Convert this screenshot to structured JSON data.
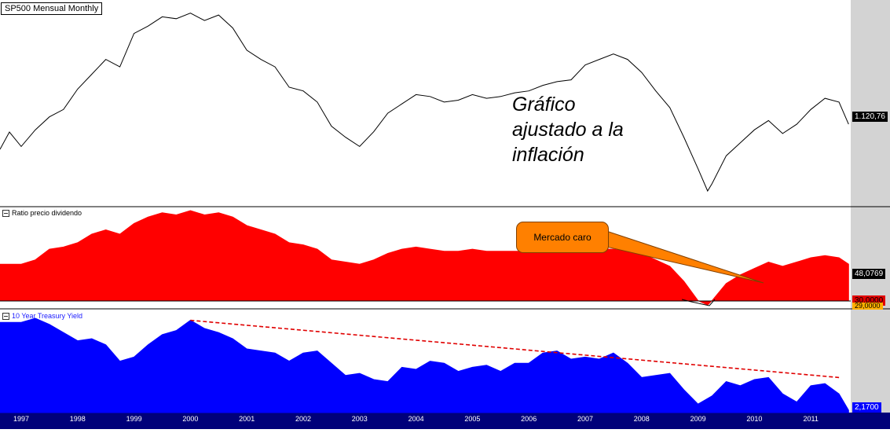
{
  "chart_data": {
    "type": "line",
    "title": "SP500 Mensual Monthly",
    "x_tick_labels": [
      "1997",
      "1998",
      "1999",
      "2000",
      "2001",
      "2002",
      "2003",
      "2004",
      "2005",
      "2006",
      "2007",
      "2008",
      "2009",
      "2010",
      "2011"
    ],
    "panels": [
      {
        "name": "SP500 Mensual Monthly",
        "type": "line",
        "color": "#000000",
        "last_value_label": "1.120,76",
        "annotation": "Gráfico\najustado a la\ninflación",
        "x": [
          1997.0,
          1997.25,
          1997.5,
          1997.75,
          1998.0,
          1998.25,
          1998.5,
          1998.75,
          1999.0,
          1999.25,
          1999.5,
          1999.75,
          2000.0,
          2000.25,
          2000.5,
          2000.75,
          2001.0,
          2001.25,
          2001.5,
          2001.75,
          2002.0,
          2002.25,
          2002.5,
          2002.75,
          2003.0,
          2003.25,
          2003.5,
          2003.75,
          2004.0,
          2004.25,
          2004.5,
          2004.75,
          2005.0,
          2005.25,
          2005.5,
          2005.75,
          2006.0,
          2006.25,
          2006.5,
          2006.75,
          2007.0,
          2007.25,
          2007.5,
          2007.75,
          2008.0,
          2008.25,
          2008.5,
          2008.75,
          2009.0,
          2009.17,
          2009.25,
          2009.5,
          2009.75,
          2010.0,
          2010.25,
          2010.5,
          2010.75,
          2011.0,
          2011.25,
          2011.5,
          2011.67
        ],
        "y": [
          1000,
          1090,
          1160,
          1200,
          1310,
          1390,
          1470,
          1430,
          1610,
          1650,
          1700,
          1690,
          1720,
          1680,
          1710,
          1640,
          1520,
          1470,
          1430,
          1320,
          1300,
          1240,
          1110,
          1050,
          1000,
          1080,
          1180,
          1230,
          1280,
          1270,
          1240,
          1250,
          1280,
          1260,
          1270,
          1290,
          1300,
          1330,
          1350,
          1360,
          1440,
          1470,
          1500,
          1470,
          1400,
          1300,
          1210,
          1050,
          880,
          760,
          800,
          950,
          1020,
          1090,
          1140,
          1070,
          1120,
          1200,
          1260,
          1240,
          1120
        ]
      },
      {
        "name": "Ratio precio dividendo",
        "type": "area",
        "color": "#ff0000",
        "last_value_label": "48,0769",
        "ref_line_label": "30,0000",
        "min_label": "29,0000",
        "callout": "Mercado caro",
        "x": [
          1997.0,
          1997.25,
          1997.5,
          1997.75,
          1998.0,
          1998.25,
          1998.5,
          1998.75,
          1999.0,
          1999.25,
          1999.5,
          1999.75,
          2000.0,
          2000.25,
          2000.5,
          2000.75,
          2001.0,
          2001.25,
          2001.5,
          2001.75,
          2002.0,
          2002.25,
          2002.5,
          2002.75,
          2003.0,
          2003.25,
          2003.5,
          2003.75,
          2004.0,
          2004.25,
          2004.5,
          2004.75,
          2005.0,
          2005.25,
          2005.5,
          2005.75,
          2006.0,
          2006.25,
          2006.5,
          2006.75,
          2007.0,
          2007.25,
          2007.5,
          2007.75,
          2008.0,
          2008.25,
          2008.5,
          2008.75,
          2009.0,
          2009.17,
          2009.25,
          2009.5,
          2009.75,
          2010.0,
          2010.25,
          2010.5,
          2010.75,
          2011.0,
          2011.25,
          2011.5,
          2011.67
        ],
        "y": [
          48,
          50,
          55,
          56,
          58,
          62,
          64,
          62,
          67,
          70,
          72,
          71,
          73,
          71,
          72,
          70,
          66,
          64,
          62,
          58,
          57,
          55,
          50,
          49,
          48,
          50,
          53,
          55,
          56,
          55,
          54,
          54,
          55,
          54,
          54,
          54,
          54,
          55,
          55,
          54,
          55,
          55,
          55,
          54,
          53,
          50,
          47,
          40,
          31,
          29,
          31,
          39,
          43,
          46,
          49,
          47,
          49,
          51,
          52,
          51,
          48
        ]
      },
      {
        "name": "10 Year Treasury Yield",
        "type": "area",
        "color": "#0000ff",
        "last_value_label": "2,1700",
        "trendline": {
          "style": "dashed",
          "color": "#e00000",
          "x": [
            2000.0,
            2011.5
          ],
          "y": [
            6.6,
            3.8
          ]
        },
        "x": [
          1997.0,
          1997.25,
          1997.5,
          1997.75,
          1998.0,
          1998.25,
          1998.5,
          1998.75,
          1999.0,
          1999.25,
          1999.5,
          1999.75,
          2000.0,
          2000.25,
          2000.5,
          2000.75,
          2001.0,
          2001.25,
          2001.5,
          2001.75,
          2002.0,
          2002.25,
          2002.5,
          2002.75,
          2003.0,
          2003.25,
          2003.5,
          2003.75,
          2004.0,
          2004.25,
          2004.5,
          2004.75,
          2005.0,
          2005.25,
          2005.5,
          2005.75,
          2006.0,
          2006.25,
          2006.5,
          2006.75,
          2007.0,
          2007.25,
          2007.5,
          2007.75,
          2008.0,
          2008.25,
          2008.5,
          2008.75,
          2009.0,
          2009.25,
          2009.5,
          2009.75,
          2010.0,
          2010.25,
          2010.5,
          2010.75,
          2011.0,
          2011.25,
          2011.5,
          2011.67
        ],
        "y": [
          6.5,
          6.7,
          6.4,
          6.0,
          5.6,
          5.7,
          5.4,
          4.6,
          4.8,
          5.4,
          5.9,
          6.1,
          6.6,
          6.2,
          6.0,
          5.7,
          5.2,
          5.1,
          5.0,
          4.6,
          5.0,
          5.1,
          4.5,
          3.9,
          4.0,
          3.7,
          3.6,
          4.3,
          4.2,
          4.6,
          4.5,
          4.1,
          4.3,
          4.4,
          4.1,
          4.5,
          4.5,
          5.0,
          5.1,
          4.7,
          4.8,
          4.7,
          5.0,
          4.5,
          3.8,
          3.9,
          4.0,
          3.2,
          2.5,
          2.9,
          3.6,
          3.4,
          3.7,
          3.8,
          3.0,
          2.6,
          3.4,
          3.5,
          3.0,
          2.2
        ]
      }
    ]
  }
}
